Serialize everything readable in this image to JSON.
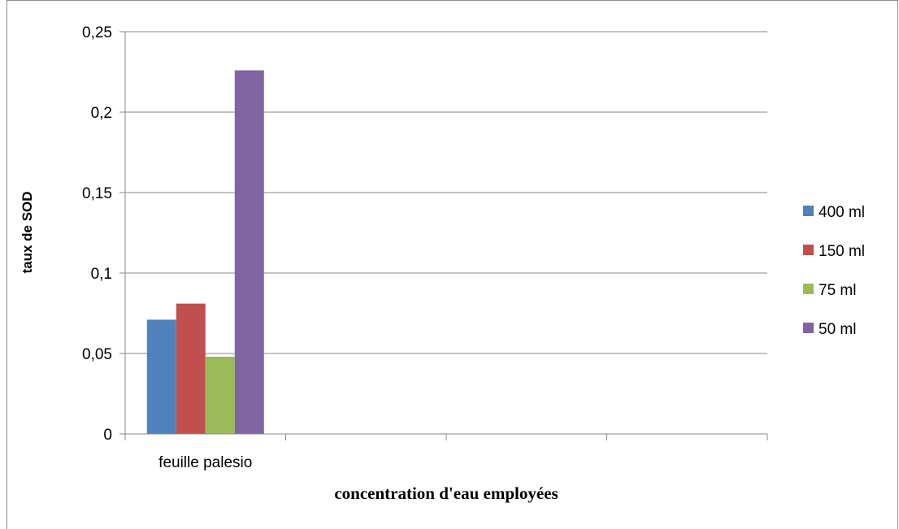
{
  "chart_data": {
    "type": "bar",
    "title": "",
    "xlabel": "concentration d'eau employées",
    "ylabel": "taux de SOD",
    "categories": [
      "feuille palesio",
      "",
      "",
      ""
    ],
    "series": [
      {
        "name": "400 ml",
        "color": "#4f81bd",
        "values": [
          0.071,
          null,
          null,
          null
        ]
      },
      {
        "name": "150 ml",
        "color": "#c0504d",
        "values": [
          0.081,
          null,
          null,
          null
        ]
      },
      {
        "name": "75 ml",
        "color": "#9bbb59",
        "values": [
          0.048,
          null,
          null,
          null
        ]
      },
      {
        "name": "50 ml",
        "color": "#8064a2",
        "values": [
          0.226,
          null,
          null,
          null
        ]
      }
    ],
    "ylim": [
      0,
      0.25
    ],
    "yticks": [
      "0",
      "0,05",
      "0,1",
      "0,15",
      "0,2",
      "0,25"
    ],
    "grid": true,
    "legend_position": "right"
  }
}
